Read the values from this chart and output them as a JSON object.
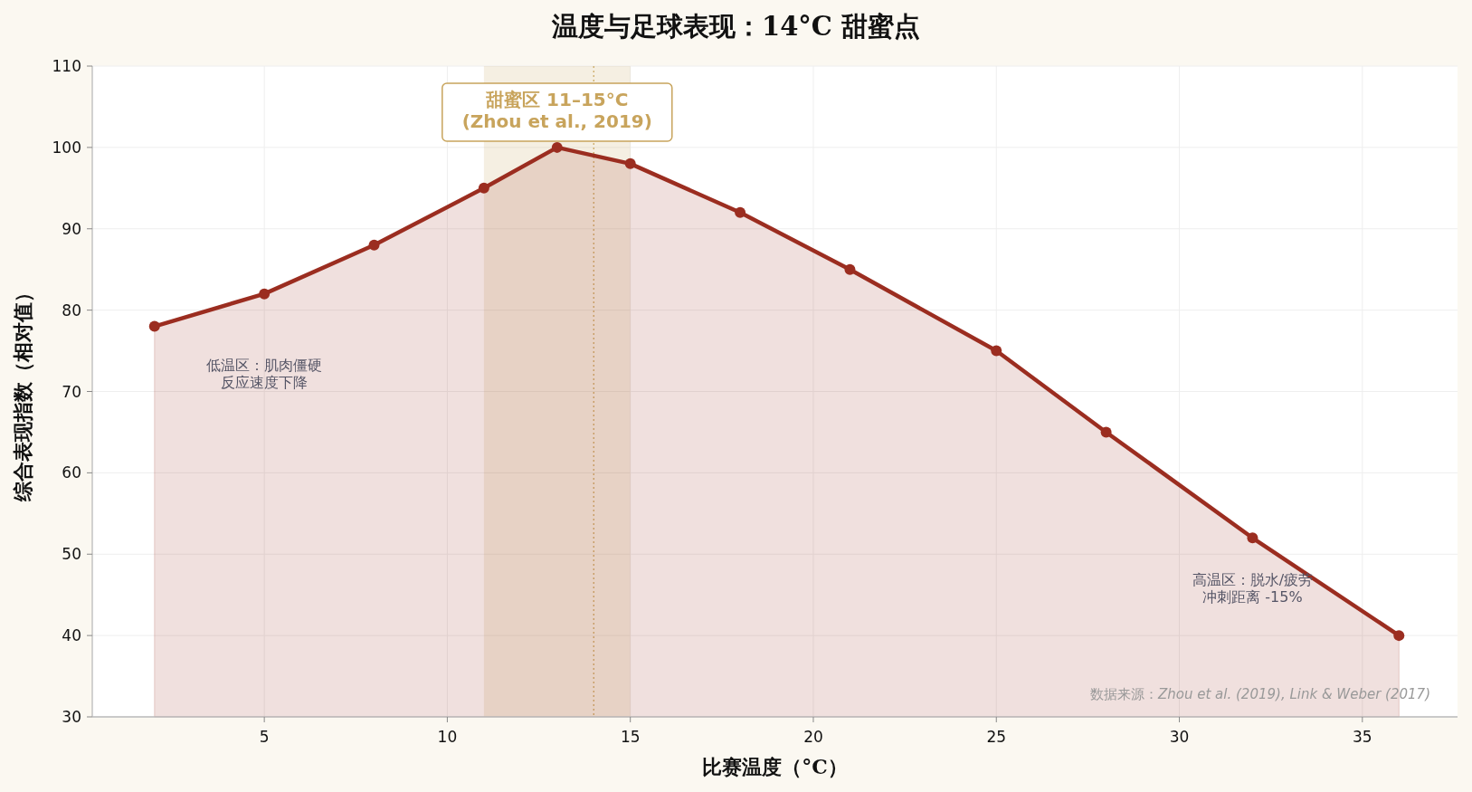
{
  "chart_data": {
    "type": "area",
    "title": "温度与足球表现：14°C 甜蜜点",
    "xlabel": "比赛温度（°C）",
    "ylabel": "综合表现指数（相对值）",
    "x": [
      2,
      5,
      8,
      11,
      13,
      15,
      18,
      21,
      25,
      28,
      32,
      36
    ],
    "series": [
      {
        "color": "#9b2d20",
        "values": [
          78,
          82,
          88,
          95,
          100,
          98,
          92,
          85,
          75,
          65,
          52,
          40
        ]
      }
    ],
    "marker": "circle",
    "grid": true,
    "xlim": [
      0.3,
      37.6
    ],
    "ylim": [
      30,
      110
    ],
    "xticks": [
      5,
      10,
      15,
      20,
      25,
      30,
      35
    ],
    "yticks": [
      30,
      40,
      50,
      60,
      70,
      80,
      90,
      100,
      110
    ],
    "bands": [
      {
        "axis": "x",
        "from": 11,
        "to": 15,
        "label": "甜蜜区 11–15°C\n(Zhou et al., 2019)",
        "color": "#c8a45c"
      }
    ],
    "ref_lines": [
      {
        "axis": "x",
        "value": 14,
        "color": "#c8a45c",
        "line_style": "dotted"
      }
    ],
    "annotations": [
      "低温区：肌肉僵硬",
      "反应速度下降",
      "高温区：脱水/疲劳",
      "冲刺距离 -15%",
      "数据来源：*Zhou et al. (2019), Link & Weber (2017)*"
    ]
  }
}
